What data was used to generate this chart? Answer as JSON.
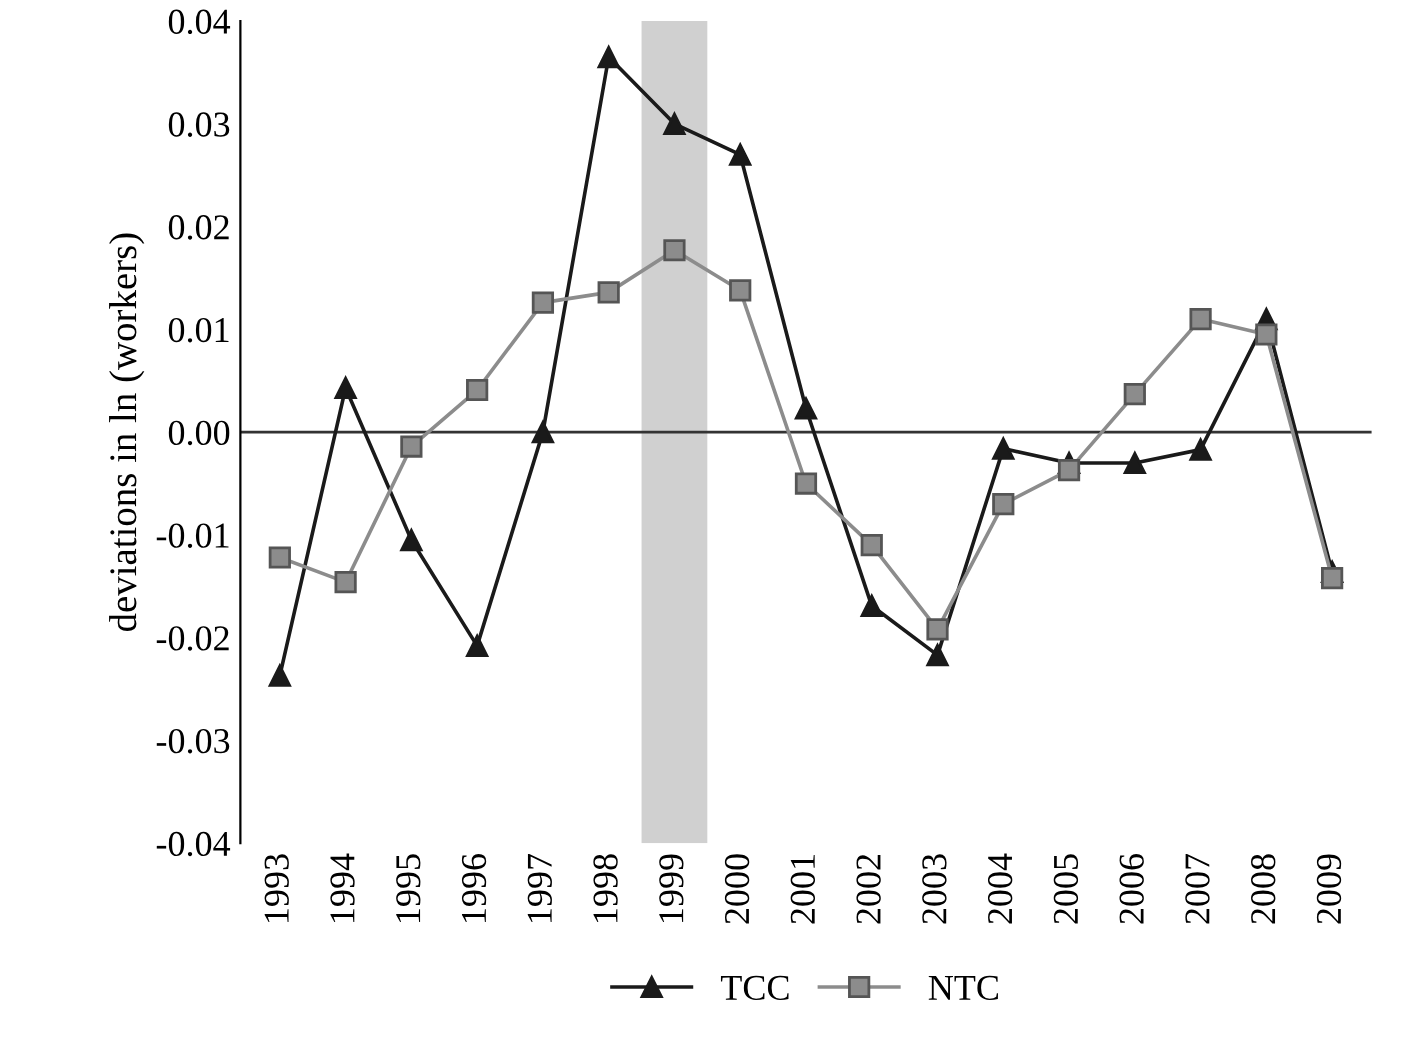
{
  "chart_data": {
    "type": "line",
    "ylabel": "deviations in ln (workers)",
    "categories": [
      "1993",
      "1994",
      "1995",
      "1996",
      "1997",
      "1998",
      "1999",
      "2000",
      "2001",
      "2002",
      "2003",
      "2004",
      "2005",
      "2006",
      "2007",
      "2008",
      "2009"
    ],
    "series": [
      {
        "name": "TCC",
        "color": "#1a1a1a",
        "marker": "triangle",
        "values": [
          -0.0237,
          0.0043,
          -0.0105,
          -0.0208,
          0.0,
          0.0365,
          0.03,
          0.027,
          0.0023,
          -0.0169,
          -0.0217,
          -0.0016,
          -0.003,
          -0.003,
          -0.0017,
          0.011,
          -0.0136
        ]
      },
      {
        "name": "NTC",
        "color": "#8c8c8c",
        "marker": "square",
        "values": [
          -0.0122,
          -0.0146,
          -0.0014,
          0.0041,
          0.0126,
          0.0136,
          0.0177,
          0.0138,
          -0.005,
          -0.011,
          -0.0192,
          -0.007,
          -0.0037,
          0.0037,
          0.011,
          0.0095,
          -0.0142
        ]
      }
    ],
    "ylim": [
      -0.04,
      0.04
    ],
    "yticks": [
      {
        "value": -0.04,
        "label": "-0.04"
      },
      {
        "value": -0.03,
        "label": "-0.03"
      },
      {
        "value": -0.02,
        "label": "-0.02"
      },
      {
        "value": -0.01,
        "label": "-0.01"
      },
      {
        "value": 0,
        "label": "0.00"
      },
      {
        "value": 0.01,
        "label": "0.01"
      },
      {
        "value": 0.02,
        "label": "0.02"
      },
      {
        "value": 0.03,
        "label": "0.03"
      },
      {
        "value": 0.04,
        "label": "0.04"
      }
    ],
    "ref_lines": [
      {
        "axis": "y",
        "value": 0,
        "color": "#333333"
      }
    ],
    "bands": [
      {
        "axis": "x",
        "from": "1999",
        "to": "1999",
        "color": "#d0d0d0"
      }
    ],
    "grid": false,
    "legend": "bottom"
  }
}
